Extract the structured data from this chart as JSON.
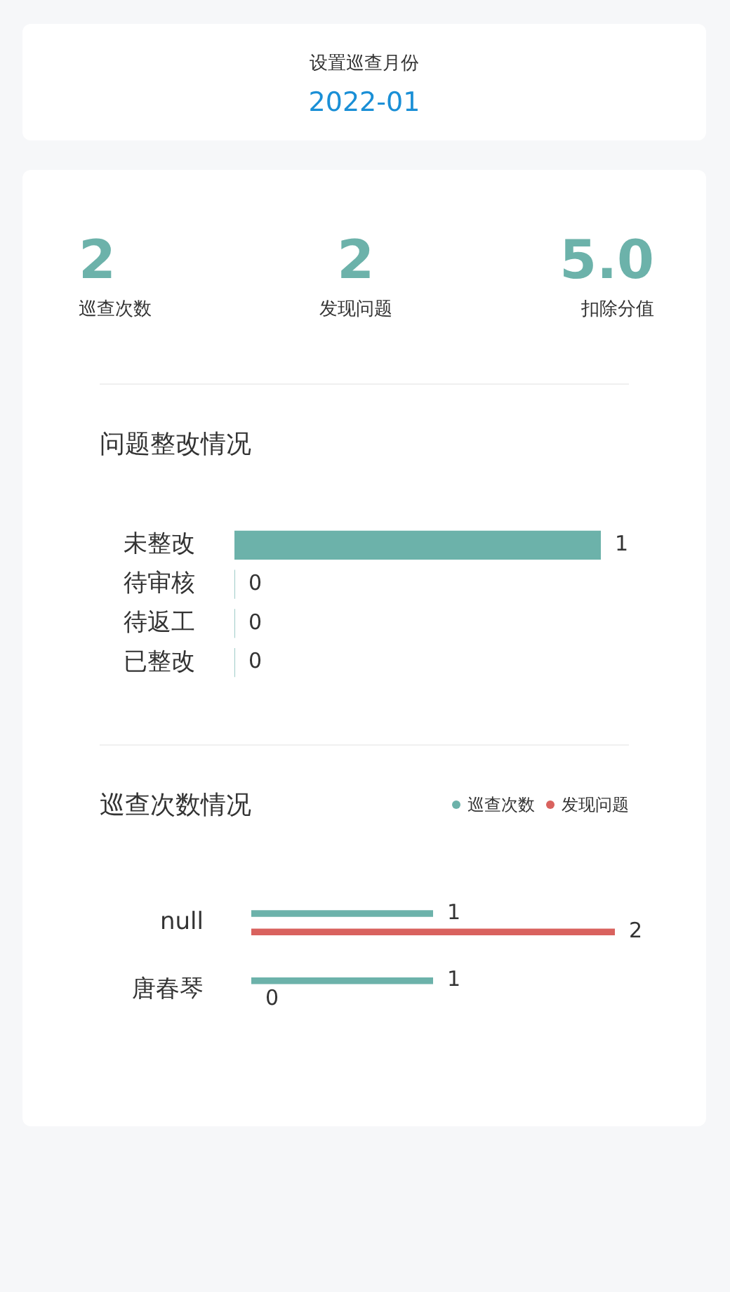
{
  "chart_data": [
    {
      "type": "other",
      "title": "设置巡查月份",
      "annotations": [
        "2022-01"
      ]
    },
    {
      "type": "other",
      "categories": [
        "巡查次数",
        "发现问题",
        "扣除分值"
      ],
      "annotations": [
        "2",
        "2",
        "5.0"
      ],
      "color": "#6cb2aa"
    },
    {
      "type": "bar",
      "orientation": "horizontal",
      "title": "问题整改情况",
      "categories": [
        "未整改",
        "待审核",
        "待返工",
        "已整改"
      ],
      "values": [
        1,
        0,
        0,
        0
      ],
      "color": "#6cb2aa",
      "data_labels": true,
      "grid": false,
      "tick_labels": "y",
      "legend": false
    },
    {
      "type": "bar",
      "orientation": "horizontal",
      "title": "巡查次数情况",
      "categories": [
        "null",
        "唐春琴"
      ],
      "series": [
        {
          "name": "巡查次数",
          "color": "#6cb2aa",
          "values": [
            1,
            1
          ]
        },
        {
          "name": "发现问题",
          "color": "#d9625e",
          "values": [
            2,
            0
          ]
        }
      ],
      "data_labels": true,
      "grid": false,
      "tick_labels": "y",
      "legend": "top right"
    }
  ]
}
